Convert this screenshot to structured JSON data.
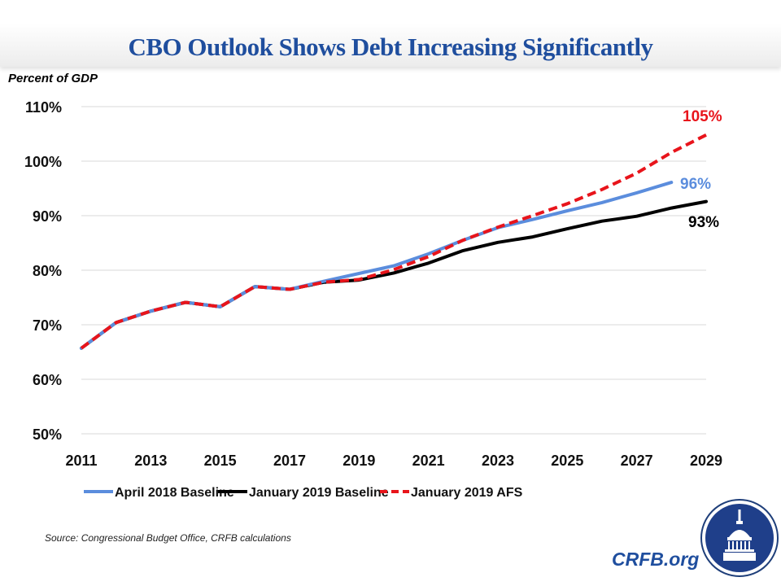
{
  "header": {
    "title": "CBO Outlook Shows Debt Increasing Significantly"
  },
  "footer": {
    "source": "Source: Congressional Budget Office, CRFB calculations",
    "brand": "CRFB.org",
    "logo_icon": "capitol-dome-icon"
  },
  "colors": {
    "title": "#1f4e9e",
    "april_2018": "#5b8ddd",
    "jan_2019": "#000000",
    "afs": "#e8141b",
    "grid": "#d9d9d9"
  },
  "chart_data": {
    "type": "line",
    "title": "CBO Outlook Shows Debt Increasing Significantly",
    "ylabel": "Percent of GDP",
    "xlabel": "",
    "ylim": [
      50,
      110
    ],
    "xlim": [
      2011,
      2029
    ],
    "grid": true,
    "yticks": [
      50,
      60,
      70,
      80,
      90,
      100,
      110
    ],
    "ytick_labels": [
      "50%",
      "60%",
      "70%",
      "80%",
      "90%",
      "100%",
      "110%"
    ],
    "xticks": [
      2011,
      2013,
      2015,
      2017,
      2019,
      2021,
      2023,
      2025,
      2027,
      2029
    ],
    "xtick_labels": [
      "2011",
      "2013",
      "2015",
      "2017",
      "2019",
      "2021",
      "2023",
      "2025",
      "2027",
      "2029"
    ],
    "legend_position": "bottom",
    "series": [
      {
        "name": "April 2018 Baseline",
        "style": "solid",
        "color": "#5b8ddd",
        "x": [
          2011,
          2012,
          2013,
          2014,
          2015,
          2016,
          2017,
          2018,
          2019,
          2020,
          2021,
          2022,
          2023,
          2024,
          2025,
          2026,
          2027,
          2028
        ],
        "values": [
          65.7,
          70.4,
          72.5,
          74.1,
          73.3,
          77.0,
          76.5,
          78.0,
          79.4,
          80.8,
          83.0,
          85.5,
          87.8,
          89.3,
          90.9,
          92.4,
          94.2,
          96.1
        ],
        "end_label": "96%"
      },
      {
        "name": "January 2019 Baseline",
        "style": "solid",
        "color": "#000000",
        "x": [
          2011,
          2012,
          2013,
          2014,
          2015,
          2016,
          2017,
          2018,
          2019,
          2020,
          2021,
          2022,
          2023,
          2024,
          2025,
          2026,
          2027,
          2028,
          2029
        ],
        "values": [
          65.7,
          70.4,
          72.5,
          74.1,
          73.3,
          77.0,
          76.5,
          77.8,
          78.2,
          79.5,
          81.3,
          83.6,
          85.1,
          86.1,
          87.6,
          89.0,
          89.9,
          91.4,
          92.6
        ],
        "end_label": "93%"
      },
      {
        "name": "January 2019 AFS",
        "style": "dashed",
        "color": "#e8141b",
        "x": [
          2011,
          2012,
          2013,
          2014,
          2015,
          2016,
          2017,
          2018,
          2019,
          2020,
          2021,
          2022,
          2023,
          2024,
          2025,
          2026,
          2027,
          2028,
          2029
        ],
        "values": [
          65.7,
          70.4,
          72.5,
          74.1,
          73.3,
          77.0,
          76.5,
          77.8,
          78.3,
          80.1,
          82.5,
          85.5,
          87.9,
          90.0,
          92.2,
          94.8,
          97.8,
          101.6,
          104.8
        ],
        "end_label": "105%"
      }
    ]
  }
}
